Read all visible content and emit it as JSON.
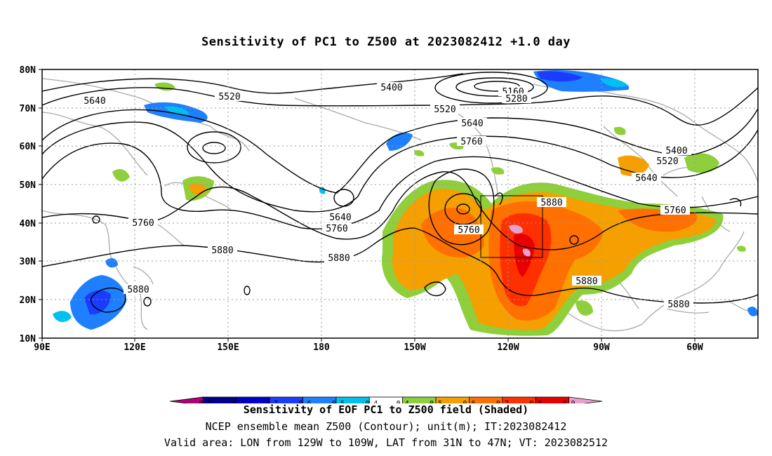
{
  "title": "Sensitivity of PC1 to Z500 at 2023082412 +1.0 day",
  "map": {
    "lat_labels": [
      "80N",
      "70N",
      "60N",
      "50N",
      "40N",
      "30N",
      "20N",
      "10N"
    ],
    "lon_labels": [
      "90E",
      "120E",
      "150E",
      "180",
      "150W",
      "120W",
      "90W",
      "60W"
    ],
    "contour_labels": [
      "5160",
      "5280",
      "5400",
      "5400",
      "5520",
      "5520",
      "5520",
      "5640",
      "5640",
      "5640",
      "5640",
      "5760",
      "5760",
      "5760",
      "5760",
      "5760",
      "5880",
      "5880",
      "5880",
      "5880",
      "5880",
      "5880"
    ],
    "valid_box": {
      "lon_from": "129W",
      "lon_to": "109W",
      "lat_from": "31N",
      "lat_to": "47N"
    }
  },
  "colorbar": {
    "labels": [
      "-0.9",
      "-0.8",
      "-0.7",
      "-0.6",
      "-0.5",
      "-0.4",
      "0.4",
      "0.5",
      "0.6",
      "0.7",
      "0.8",
      "0.9"
    ],
    "colors": [
      "#b0007a",
      "#00008b",
      "#0000cd",
      "#1a3cff",
      "#1e80ff",
      "#00c0f0",
      "#ffffff",
      "#8fcf3c",
      "#f5a000",
      "#ff7000",
      "#ff3000",
      "#e80000",
      "#e8a0d0"
    ]
  },
  "captions": {
    "line1": "Sensitivity of EOF PC1 to Z500 field (Shaded)",
    "line2": "NCEP ensemble mean Z500 (Contour); unit(m); IT:2023082412",
    "line3": "Valid area: LON from 129W to 109W, LAT from 31N to 47N; VT: 2023082512"
  }
}
